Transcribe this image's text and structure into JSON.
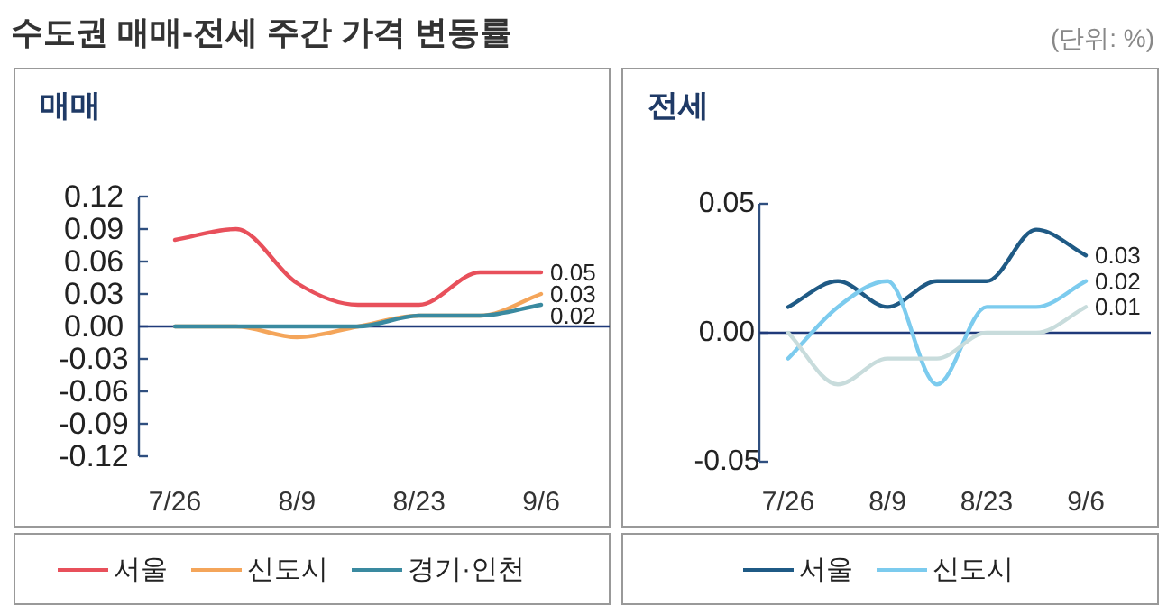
{
  "chart_data": [
    {
      "type": "line",
      "title": "매매",
      "annotations": [
        "수도권 매매-전세 주간 가격 변동률"
      ],
      "categories": [
        "7/26",
        null,
        "8/9",
        null,
        "8/23",
        null,
        "9/6"
      ],
      "ylim": [
        -0.12,
        0.12
      ],
      "yticks": [
        {
          "value": 0.12,
          "label": "0.12"
        },
        {
          "value": 0.09,
          "label": "0.09"
        },
        {
          "value": 0.06,
          "label": "0.06"
        },
        {
          "value": 0.03,
          "label": "0.03"
        },
        {
          "value": 0,
          "label": "0.00"
        },
        {
          "value": -0.03,
          "label": "-0.03"
        },
        {
          "value": -0.06,
          "label": "-0.06"
        },
        {
          "value": -0.09,
          "label": "-0.09"
        },
        {
          "value": -0.12,
          "label": "-0.12"
        }
      ],
      "ref_lines": [
        {
          "axis": "y",
          "value": 0,
          "color": "#1f3a7a"
        }
      ],
      "legend": "bottom",
      "grid": false,
      "series": [
        {
          "name": "서울",
          "color": "#e8505b",
          "values": [
            0.08,
            0.09,
            0.04,
            0.02,
            0.02,
            0.05,
            0.05
          ],
          "value_labels": [
            null,
            null,
            null,
            null,
            null,
            null,
            "0.05"
          ]
        },
        {
          "name": "신도시",
          "color": "#f4a55a",
          "values": [
            0,
            0,
            -0.01,
            0,
            0.01,
            0.01,
            0.03
          ],
          "value_labels": [
            null,
            null,
            null,
            null,
            null,
            null,
            "0.03"
          ]
        },
        {
          "name": "경기·인천",
          "color": "#3a8aa0",
          "values": [
            0,
            0,
            0,
            0,
            0.01,
            0.01,
            0.02
          ],
          "value_labels": [
            null,
            null,
            null,
            null,
            null,
            null,
            "0.02"
          ]
        }
      ]
    },
    {
      "type": "line",
      "title": "전세",
      "annotations": [
        "(단위: %)"
      ],
      "categories": [
        "7/26",
        null,
        "8/9",
        null,
        "8/23",
        null,
        "9/6"
      ],
      "ylim": [
        -0.05,
        0.05
      ],
      "yticks": [
        {
          "value": 0.05,
          "label": "0.05"
        },
        {
          "value": 0,
          "label": "0.00"
        },
        {
          "value": -0.05,
          "label": "-0.05"
        }
      ],
      "ref_lines": [
        {
          "axis": "y",
          "value": 0,
          "color": "#1f3a7a"
        }
      ],
      "legend": "bottom",
      "grid": false,
      "series": [
        {
          "name": "서울",
          "color": "#1f5a85",
          "values": [
            0.01,
            0.02,
            0.01,
            0.02,
            0.02,
            0.04,
            0.03
          ],
          "value_labels": [
            null,
            null,
            null,
            null,
            null,
            null,
            "0.03"
          ]
        },
        {
          "name": "신도시",
          "color": "#7ccbee",
          "values": [
            -0.01,
            0.01,
            0.02,
            -0.02,
            0.01,
            0.01,
            0.02
          ],
          "value_labels": [
            null,
            null,
            null,
            null,
            null,
            null,
            "0.02"
          ]
        },
        {
          "color": "#c8dcdc",
          "values": [
            0,
            -0.02,
            -0.01,
            -0.01,
            0,
            0,
            0.01
          ],
          "value_labels": [
            null,
            null,
            null,
            null,
            null,
            null,
            "0.01"
          ]
        }
      ]
    }
  ]
}
